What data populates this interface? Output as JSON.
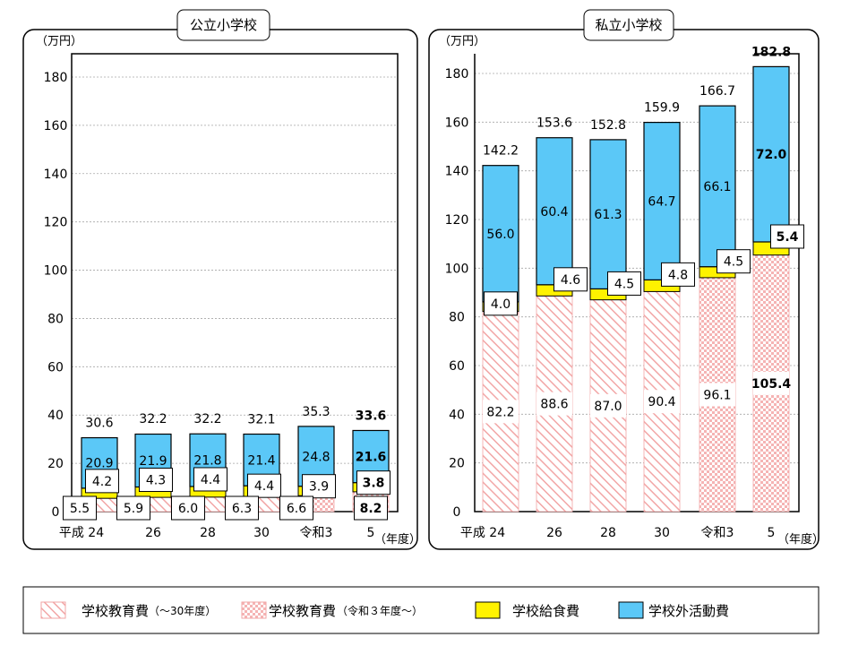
{
  "legend": {
    "items": [
      {
        "key": "edu_old",
        "label": "学校教育費",
        "note": "（～30年度）"
      },
      {
        "key": "edu_new",
        "label": "学校教育費",
        "note": "（令和３年度～）"
      },
      {
        "key": "lunch",
        "label": "学校給食費",
        "note": ""
      },
      {
        "key": "outside",
        "label": "学校外活動費",
        "note": ""
      }
    ]
  },
  "colors": {
    "outside": "#5BC8F7",
    "lunch": "#FFF200",
    "hatch": "#F2A6A6",
    "frame": "#000000",
    "grid": "#A6A6A6"
  },
  "chart_data": [
    {
      "type": "bar",
      "stacked": true,
      "title": "公立小学校",
      "unit": "（万円）",
      "x_unit": "（年度）",
      "categories": [
        "平成 24",
        "26",
        "28",
        "30",
        "令和3",
        "5"
      ],
      "ylim": [
        0,
        190
      ],
      "yticks": [
        0,
        20,
        40,
        60,
        80,
        100,
        120,
        140,
        160,
        180
      ],
      "grid": true,
      "series": [
        {
          "name": "学校教育費",
          "key": "edu",
          "values": [
            5.5,
            5.9,
            6.0,
            6.3,
            6.6,
            8.2
          ]
        },
        {
          "name": "学校給食費",
          "key": "lunch",
          "values": [
            4.2,
            4.3,
            4.4,
            4.4,
            3.9,
            3.8
          ]
        },
        {
          "name": "学校外活動費",
          "key": "outside",
          "values": [
            20.9,
            21.9,
            21.8,
            21.4,
            24.8,
            21.6
          ]
        }
      ],
      "totals": [
        30.6,
        32.2,
        32.2,
        32.1,
        35.3,
        33.6
      ],
      "bold_index": 5,
      "edu_style": [
        "diag",
        "diag",
        "diag",
        "diag",
        "check",
        "check"
      ]
    },
    {
      "type": "bar",
      "stacked": true,
      "title": "私立小学校",
      "unit": "（万円）",
      "x_unit": "（年度）",
      "categories": [
        "平成 24",
        "26",
        "28",
        "30",
        "令和3",
        "5"
      ],
      "ylim": [
        0,
        190
      ],
      "yticks": [
        0,
        20,
        40,
        60,
        80,
        100,
        120,
        140,
        160,
        180
      ],
      "grid": true,
      "series": [
        {
          "name": "学校教育費",
          "key": "edu",
          "values": [
            82.2,
            88.6,
            87.0,
            90.4,
            96.1,
            105.4
          ]
        },
        {
          "name": "学校給食費",
          "key": "lunch",
          "values": [
            4.0,
            4.6,
            4.5,
            4.8,
            4.5,
            5.4
          ]
        },
        {
          "name": "学校外活動費",
          "key": "outside",
          "values": [
            56.0,
            60.4,
            61.3,
            64.7,
            66.1,
            72.0
          ]
        }
      ],
      "totals": [
        142.2,
        153.6,
        152.8,
        159.9,
        166.7,
        182.8
      ],
      "bold_index": 5,
      "edu_style": [
        "diag",
        "diag",
        "diag",
        "diag",
        "check",
        "check"
      ]
    }
  ]
}
